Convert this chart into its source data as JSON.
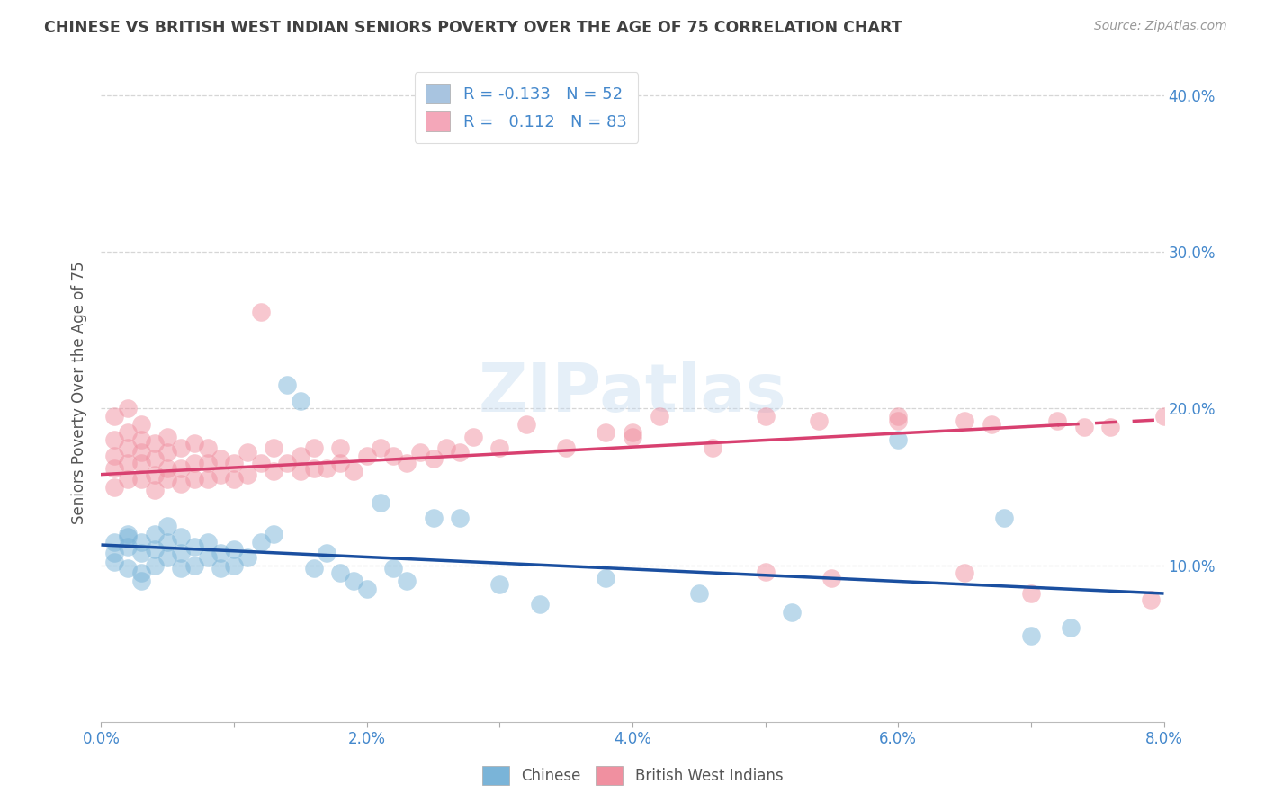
{
  "title": "CHINESE VS BRITISH WEST INDIAN SENIORS POVERTY OVER THE AGE OF 75 CORRELATION CHART",
  "source": "Source: ZipAtlas.com",
  "ylabel": "Seniors Poverty Over the Age of 75",
  "legend_entry1": {
    "label": "Chinese",
    "R": "-0.133",
    "N": "52",
    "patch_color": "#a8c4e0"
  },
  "legend_entry2": {
    "label": "British West Indians",
    "R": "0.112",
    "N": "83",
    "patch_color": "#f4a7b9"
  },
  "chinese_color": "#7ab4d8",
  "bwi_color": "#f090a0",
  "line_chinese_color": "#1a4fa0",
  "line_bwi_color": "#d84070",
  "background_color": "#ffffff",
  "grid_color": "#cccccc",
  "title_color": "#404040",
  "axis_label_color": "#4488cc",
  "xlim": [
    0.0,
    0.08
  ],
  "ylim": [
    0.0,
    0.42
  ],
  "cn_line_y0": 0.113,
  "cn_line_y1": 0.082,
  "bwi_line_y0": 0.158,
  "bwi_line_y1": 0.193,
  "bwi_solid_xend": 0.072,
  "chinese_x": [
    0.001,
    0.001,
    0.001,
    0.002,
    0.002,
    0.002,
    0.002,
    0.003,
    0.003,
    0.003,
    0.003,
    0.004,
    0.004,
    0.004,
    0.005,
    0.005,
    0.005,
    0.006,
    0.006,
    0.006,
    0.007,
    0.007,
    0.008,
    0.008,
    0.009,
    0.009,
    0.01,
    0.01,
    0.011,
    0.012,
    0.013,
    0.014,
    0.015,
    0.016,
    0.017,
    0.018,
    0.019,
    0.02,
    0.021,
    0.022,
    0.023,
    0.025,
    0.027,
    0.03,
    0.033,
    0.038,
    0.045,
    0.052,
    0.06,
    0.068,
    0.07,
    0.073
  ],
  "chinese_y": [
    0.115,
    0.108,
    0.102,
    0.12,
    0.118,
    0.112,
    0.098,
    0.115,
    0.108,
    0.095,
    0.09,
    0.12,
    0.11,
    0.1,
    0.125,
    0.115,
    0.105,
    0.118,
    0.108,
    0.098,
    0.112,
    0.1,
    0.115,
    0.105,
    0.108,
    0.098,
    0.11,
    0.1,
    0.105,
    0.115,
    0.12,
    0.215,
    0.205,
    0.098,
    0.108,
    0.095,
    0.09,
    0.085,
    0.14,
    0.098,
    0.09,
    0.13,
    0.13,
    0.088,
    0.075,
    0.092,
    0.082,
    0.07,
    0.18,
    0.13,
    0.055,
    0.06
  ],
  "bwi_x": [
    0.001,
    0.001,
    0.001,
    0.001,
    0.001,
    0.002,
    0.002,
    0.002,
    0.002,
    0.002,
    0.003,
    0.003,
    0.003,
    0.003,
    0.003,
    0.004,
    0.004,
    0.004,
    0.004,
    0.005,
    0.005,
    0.005,
    0.005,
    0.006,
    0.006,
    0.006,
    0.007,
    0.007,
    0.007,
    0.008,
    0.008,
    0.008,
    0.009,
    0.009,
    0.01,
    0.01,
    0.011,
    0.011,
    0.012,
    0.012,
    0.013,
    0.013,
    0.014,
    0.015,
    0.015,
    0.016,
    0.016,
    0.017,
    0.018,
    0.018,
    0.019,
    0.02,
    0.021,
    0.022,
    0.023,
    0.024,
    0.025,
    0.026,
    0.027,
    0.028,
    0.03,
    0.032,
    0.035,
    0.038,
    0.042,
    0.046,
    0.05,
    0.054,
    0.06,
    0.065,
    0.04,
    0.04,
    0.05,
    0.055,
    0.06,
    0.065,
    0.067,
    0.07,
    0.072,
    0.074,
    0.076,
    0.079,
    0.08
  ],
  "bwi_y": [
    0.162,
    0.15,
    0.17,
    0.18,
    0.195,
    0.155,
    0.165,
    0.175,
    0.185,
    0.2,
    0.155,
    0.165,
    0.172,
    0.18,
    0.19,
    0.148,
    0.158,
    0.168,
    0.178,
    0.155,
    0.162,
    0.172,
    0.182,
    0.152,
    0.162,
    0.175,
    0.155,
    0.165,
    0.178,
    0.155,
    0.165,
    0.175,
    0.158,
    0.168,
    0.155,
    0.165,
    0.158,
    0.172,
    0.262,
    0.165,
    0.16,
    0.175,
    0.165,
    0.16,
    0.17,
    0.162,
    0.175,
    0.162,
    0.165,
    0.175,
    0.16,
    0.17,
    0.175,
    0.17,
    0.165,
    0.172,
    0.168,
    0.175,
    0.172,
    0.182,
    0.175,
    0.19,
    0.175,
    0.185,
    0.195,
    0.175,
    0.195,
    0.192,
    0.195,
    0.192,
    0.185,
    0.182,
    0.096,
    0.092,
    0.192,
    0.095,
    0.19,
    0.082,
    0.192,
    0.188,
    0.188,
    0.078,
    0.195
  ]
}
